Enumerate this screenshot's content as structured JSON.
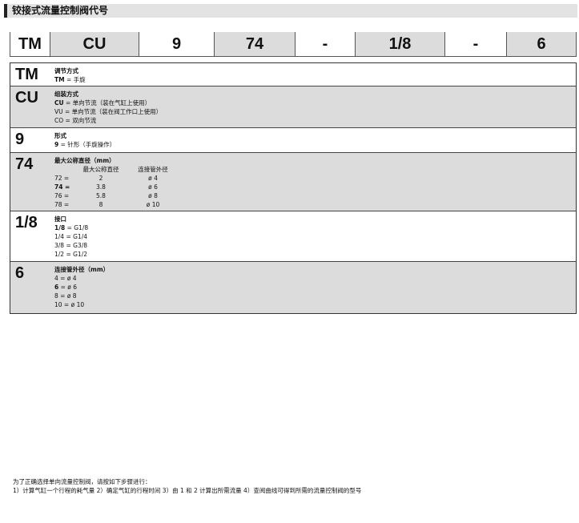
{
  "header": {
    "title": "铰接式流量控制阀代号"
  },
  "codes": [
    "TM",
    "CU",
    "9",
    "74",
    "-",
    "1/8",
    "-",
    "6"
  ],
  "rows": [
    {
      "key": "TM",
      "title": "调节方式",
      "lines": [
        {
          "b": "TM",
          "t": " = 手旋"
        }
      ]
    },
    {
      "key": "CU",
      "title": "组装方式",
      "lines": [
        {
          "b": "CU",
          "t": " = 单向节流（装在气缸上使用）"
        },
        {
          "b": "",
          "t": "VU = 单向节流（装在阀工作口上使用）"
        },
        {
          "b": "",
          "t": "CO = 双向节流"
        }
      ]
    },
    {
      "key": "9",
      "title": "形式",
      "lines": [
        {
          "b": "9",
          "t": " = 针形（手旋操作）"
        }
      ]
    },
    {
      "key": "74",
      "title": "最大公称直径（mm）",
      "table": {
        "headers": [
          "",
          "最大公称直径",
          "连接管外径"
        ],
        "rows": [
          [
            "72 =",
            "2",
            "ø 4"
          ],
          [
            "74 =",
            "3.8",
            "ø 6"
          ],
          [
            "76 =",
            "5.8",
            "ø 8"
          ],
          [
            "78 =",
            "8",
            "ø 10"
          ]
        ]
      }
    },
    {
      "key": "1/8",
      "title": "接口",
      "lines": [
        {
          "b": "1/8",
          "t": " = G1/8"
        },
        {
          "b": "",
          "t": "1/4 = G1/4"
        },
        {
          "b": "",
          "t": "3/8 = G3/8"
        },
        {
          "b": "",
          "t": "1/2 = G1/2"
        }
      ]
    },
    {
      "key": "6",
      "title": "连接管外径（mm）",
      "lines": [
        {
          "b": "",
          "t": "4 = ø 4"
        },
        {
          "b": "6",
          "t": " = ø 6"
        },
        {
          "b": "",
          "t": "8 = ø 8"
        },
        {
          "b": "",
          "t": "10 = ø 10"
        }
      ]
    }
  ],
  "footer": [
    "为了正确选择单向流量控制阀，请按如下步骤进行：",
    "1）计算气缸一个行程的耗气量 2）确定气缸的行程时间 3）由 1 和 2 计算出所需流量 4）查阅曲线可得到所需的流量控制阀的型号"
  ]
}
